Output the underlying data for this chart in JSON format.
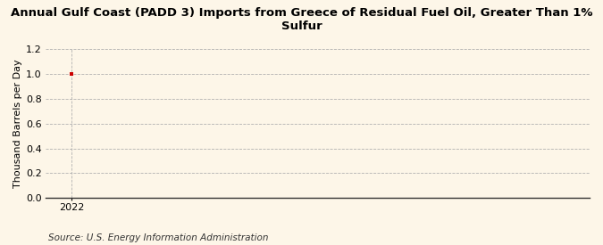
{
  "title": "Annual Gulf Coast (PADD 3) Imports from Greece of Residual Fuel Oil, Greater Than 1% Sulfur",
  "ylabel": "Thousand Barrels per Day",
  "source": "Source: U.S. Energy Information Administration",
  "x_data": [
    2022
  ],
  "y_data": [
    1.0
  ],
  "ylim": [
    0.0,
    1.2
  ],
  "yticks": [
    0.0,
    0.2,
    0.4,
    0.6,
    0.8,
    1.0,
    1.2
  ],
  "xlim": [
    2021.7,
    2028.0
  ],
  "xticks": [
    2022
  ],
  "background_color": "#fdf6e8",
  "plot_bg_color": "#fdf6e8",
  "data_color": "#cc0000",
  "grid_color": "#aaaaaa",
  "title_fontsize": 9.5,
  "label_fontsize": 8.0,
  "tick_fontsize": 8.0,
  "source_fontsize": 7.5
}
